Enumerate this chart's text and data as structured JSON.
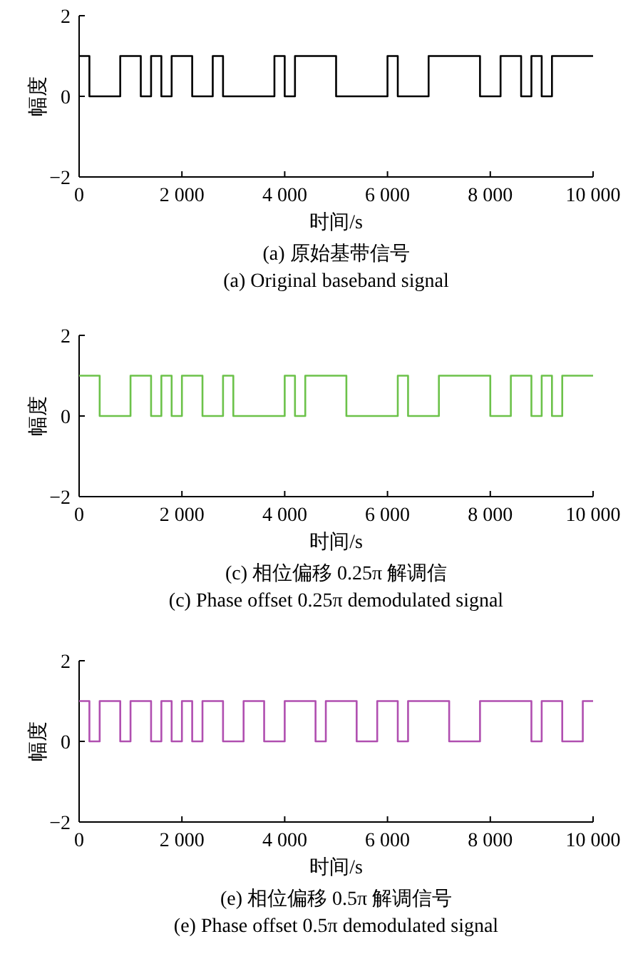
{
  "chart_data": [
    {
      "type": "step",
      "title": "(a) 原始基带信号",
      "subtitle": "(a) Original baseband signal",
      "xlabel": "时间/s",
      "ylabel": "幅度",
      "xlim": [
        0,
        10000
      ],
      "ylim": [
        -2,
        2
      ],
      "xticks": [
        {
          "value": 0,
          "label": "0"
        },
        {
          "value": 2000,
          "label": "2 000"
        },
        {
          "value": 4000,
          "label": "4 000"
        },
        {
          "value": 6000,
          "label": "6 000"
        },
        {
          "value": 8000,
          "label": "8 000"
        },
        {
          "value": 10000,
          "label": "10 000"
        }
      ],
      "yticks": [
        -2,
        0,
        2
      ],
      "series": [
        {
          "color": "#000000",
          "x": [
            0,
            200,
            800,
            1200,
            1400,
            1600,
            1800,
            2200,
            2600,
            2800,
            3800,
            4000,
            4200,
            5000,
            6000,
            6200,
            6800,
            7800,
            8200,
            8600,
            8800,
            9000,
            9200,
            10000
          ],
          "values": [
            1,
            0,
            1,
            0,
            1,
            0,
            1,
            0,
            1,
            0,
            1,
            0,
            1,
            0,
            1,
            0,
            1,
            0,
            1,
            0,
            1,
            0,
            1,
            1
          ]
        }
      ]
    },
    {
      "type": "step",
      "title": "(c) 相位偏移 0.25π 解调信",
      "subtitle": "(c) Phase offset 0.25π demodulated signal",
      "xlabel": "时间/s",
      "ylabel": "幅度",
      "xlim": [
        0,
        10000
      ],
      "ylim": [
        -2,
        2
      ],
      "xticks": [
        {
          "value": 0,
          "label": "0"
        },
        {
          "value": 2000,
          "label": "2 000"
        },
        {
          "value": 4000,
          "label": "4 000"
        },
        {
          "value": 6000,
          "label": "6 000"
        },
        {
          "value": 8000,
          "label": "8 000"
        },
        {
          "value": 10000,
          "label": "10 000"
        }
      ],
      "yticks": [
        -2,
        0,
        2
      ],
      "series": [
        {
          "color": "#6cc24a",
          "x": [
            0,
            400,
            1000,
            1400,
            1600,
            1800,
            2000,
            2400,
            2800,
            3000,
            4000,
            4200,
            4400,
            5200,
            6200,
            6400,
            7000,
            8000,
            8400,
            8800,
            9000,
            9200,
            9400,
            10000
          ],
          "values": [
            1,
            0,
            1,
            0,
            1,
            0,
            1,
            0,
            1,
            0,
            1,
            0,
            1,
            0,
            1,
            0,
            1,
            0,
            1,
            0,
            1,
            0,
            1,
            1
          ]
        }
      ]
    },
    {
      "type": "step",
      "title": "(e) 相位偏移 0.5π 解调信号",
      "subtitle": "(e) Phase offset 0.5π demodulated signal",
      "xlabel": "时间/s",
      "ylabel": "幅度",
      "xlim": [
        0,
        10000
      ],
      "ylim": [
        -2,
        2
      ],
      "xticks": [
        {
          "value": 0,
          "label": "0"
        },
        {
          "value": 2000,
          "label": "2 000"
        },
        {
          "value": 4000,
          "label": "4 000"
        },
        {
          "value": 6000,
          "label": "6 000"
        },
        {
          "value": 8000,
          "label": "8 000"
        },
        {
          "value": 10000,
          "label": "10 000"
        }
      ],
      "yticks": [
        -2,
        0,
        2
      ],
      "series": [
        {
          "color": "#b04fb0",
          "x": [
            0,
            200,
            400,
            800,
            1000,
            1400,
            1600,
            1800,
            2000,
            2200,
            2400,
            2800,
            3200,
            3600,
            4000,
            4600,
            4800,
            5400,
            5800,
            6200,
            6400,
            7200,
            7800,
            8800,
            9000,
            9400,
            9800,
            10000
          ],
          "values": [
            1,
            0,
            1,
            0,
            1,
            0,
            1,
            0,
            1,
            0,
            1,
            0,
            1,
            0,
            1,
            0,
            1,
            0,
            1,
            0,
            1,
            0,
            1,
            0,
            1,
            0,
            1,
            1
          ]
        }
      ]
    }
  ]
}
